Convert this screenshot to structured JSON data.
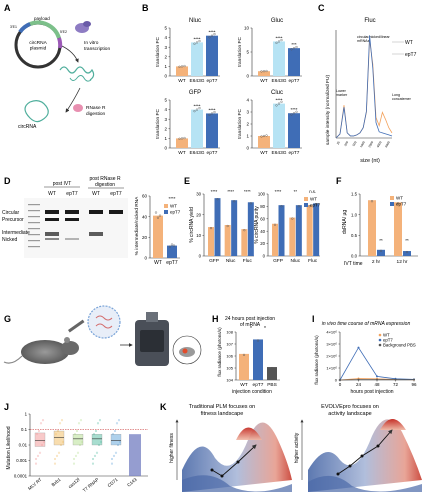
{
  "colors": {
    "wt": "#f4b27a",
    "e643g": "#b6e3f4",
    "ept7": "#3f6db6",
    "gray": "#555555",
    "highlight": "#c52525"
  },
  "panels": {
    "A": {
      "letter": "A",
      "plasmid_label": "circRNA\nplasmid",
      "arc_labels": [
        "payload",
        "3'E1",
        "5'E2"
      ],
      "step1": "In vitro\ntranscription",
      "step2": "RNase R\ndigestion",
      "product": "circRNA"
    },
    "B": {
      "letter": "B",
      "ylabel": "translation FC"
    },
    "C": {
      "letter": "C",
      "title": "Fluc",
      "ylabel": "sample intensity (normalized FU)",
      "xlabel": "size (nt)",
      "legend": [
        "WT",
        "epT7"
      ],
      "annotations": [
        "circular/nicked/linear\nmRNAs",
        "Lower\nmarker",
        "Long\nconcatemer"
      ]
    },
    "D": {
      "letter": "D",
      "lane_groups": [
        "post IVT",
        "post RNase R\ndigestion"
      ],
      "lanes": [
        "WT",
        "epT7",
        "WT",
        "epT7"
      ],
      "band_labels": [
        "Circular",
        "Precursor",
        "Intermediate",
        "Nicked"
      ],
      "chart_ylabel": "% intermediate/nicked RNA",
      "sig": "****"
    },
    "E": {
      "letter": "E",
      "ylabel_left": "% circRNA yield",
      "ylabel_right": "% circRNA purity",
      "legend": [
        "WT",
        "epT7"
      ]
    },
    "F": {
      "letter": "F",
      "ylabel": "dsRNA/ µg",
      "xlabel": "IVT time",
      "legend": [
        "WT",
        "epT7"
      ]
    },
    "G": {
      "letter": "G"
    },
    "H": {
      "letter": "H",
      "title": "24 hours post injection\nof mRNA",
      "ylabel": "flux radiance (photons/s)",
      "xlabel": "injection condition"
    },
    "I": {
      "letter": "I",
      "title": "in vivo time course of mRNA expression",
      "ylabel": "flux radiance (photons/s)",
      "xlabel": "hours post injection",
      "legend": [
        "WT",
        "epT7",
        "Background PBS"
      ]
    },
    "J": {
      "letter": "J",
      "ylabel": "Mutation Likelihood"
    },
    "K": {
      "letter": "K",
      "left_title": "Traditional PLM focuses on\nfitness landscape",
      "left_axis": "higher fitness",
      "right_title": "EVOLVEpro focuses on\nactivity landscape",
      "right_axis": "higher activity"
    }
  },
  "chart_data": [
    {
      "panel": "B",
      "name": "Nluc",
      "type": "bar",
      "title": "Nluc",
      "categories": [
        "WT",
        "E643G",
        "epT7"
      ],
      "values": [
        1,
        3.5,
        4.2
      ],
      "ylim": [
        0,
        5
      ],
      "yticks": [
        0,
        1,
        2,
        3,
        4,
        5
      ],
      "sig": [
        "****",
        "****"
      ]
    },
    {
      "panel": "B",
      "name": "Gluc",
      "type": "bar",
      "title": "Gluc",
      "categories": [
        "WT",
        "E643G",
        "epT7"
      ],
      "values": [
        1,
        7.2,
        5.8
      ],
      "ylim": [
        0,
        10
      ],
      "yticks": [
        0,
        5,
        10
      ],
      "sig": [
        "****",
        "***"
      ]
    },
    {
      "panel": "B",
      "name": "GFP",
      "type": "bar",
      "title": "GFP",
      "categories": [
        "WT",
        "E643G",
        "epT7"
      ],
      "values": [
        1,
        4.0,
        3.6
      ],
      "ylim": [
        0,
        5
      ],
      "yticks": [
        0,
        1,
        2,
        3,
        4,
        5
      ],
      "sig": [
        "****",
        "****"
      ]
    },
    {
      "panel": "B",
      "name": "Cluc",
      "type": "bar",
      "title": "Cluc",
      "categories": [
        "WT",
        "E643G",
        "epT7"
      ],
      "values": [
        1,
        3.7,
        2.9
      ],
      "ylim": [
        0,
        4
      ],
      "yticks": [
        0,
        1,
        2,
        3,
        4
      ],
      "sig": [
        "****",
        "****"
      ]
    },
    {
      "panel": "C",
      "type": "line",
      "xlabel": "size (nt)",
      "ylabel": "sample intensity (normalized FU)",
      "x_ticks": [
        "25",
        "200",
        "500",
        "1000",
        "2000",
        "4000",
        "6000"
      ],
      "series": [
        {
          "name": "WT",
          "x": [
            0,
            0.5,
            1,
            1.4,
            1.8,
            2.2,
            2.6,
            3.0,
            3.4,
            3.8,
            4.2,
            4.6,
            5.0,
            5.4,
            5.8,
            6.2,
            6.6,
            7.0
          ],
          "y": [
            0,
            0.04,
            0.32,
            0.05,
            0.02,
            0.02,
            0.03,
            0.05,
            0.1,
            0.25,
            0.96,
            0.72,
            0.2,
            0.12,
            0.25,
            0.18,
            0.1,
            0.05
          ]
        },
        {
          "name": "epT7",
          "x": [
            0,
            0.5,
            1,
            1.4,
            1.8,
            2.2,
            2.6,
            3.0,
            3.4,
            3.8,
            4.2,
            4.6,
            5.0,
            5.4,
            5.8,
            6.2,
            6.6,
            7.0
          ],
          "y": [
            0,
            0.04,
            0.3,
            0.05,
            0.02,
            0.02,
            0.03,
            0.05,
            0.1,
            0.26,
            1.0,
            0.68,
            0.15,
            0.06,
            0.05,
            0.04,
            0.03,
            0.02
          ]
        }
      ]
    },
    {
      "panel": "D",
      "type": "bar",
      "categories": [
        "WT",
        "epT7"
      ],
      "values": [
        41,
        12
      ],
      "ylim": [
        0,
        60
      ],
      "yticks": [
        0,
        20,
        40,
        60
      ],
      "points": [
        [
          44,
          39,
          41
        ],
        [
          11,
          13,
          12
        ]
      ]
    },
    {
      "panel": "E",
      "name": "yield",
      "type": "bar",
      "categories": [
        "GFP",
        "Nluc",
        "Fluc"
      ],
      "ylim": [
        0,
        30
      ],
      "yticks": [
        0,
        10,
        20,
        30
      ],
      "series": [
        {
          "name": "WT",
          "values": [
            14,
            15,
            13
          ]
        },
        {
          "name": "epT7",
          "values": [
            28,
            27,
            26
          ]
        }
      ],
      "sig": [
        "****",
        "****",
        "****"
      ]
    },
    {
      "panel": "E",
      "name": "purity",
      "type": "bar",
      "categories": [
        "GFP",
        "Nluc",
        "Fluc"
      ],
      "ylim": [
        0,
        100
      ],
      "yticks": [
        0,
        20,
        40,
        60,
        80,
        100
      ],
      "series": [
        {
          "name": "WT",
          "values": [
            52,
            62,
            82
          ]
        },
        {
          "name": "epT7",
          "values": [
            82,
            82,
            85
          ]
        }
      ],
      "sig": [
        "****",
        "**",
        "n.s."
      ]
    },
    {
      "panel": "F",
      "type": "bar",
      "categories": [
        "2 hr",
        "12 hr"
      ],
      "ylim": [
        0,
        1.5
      ],
      "yticks": [
        0.0,
        0.5,
        1.0,
        1.5
      ],
      "series": [
        {
          "name": "WT",
          "values": [
            1.35,
            1.3
          ]
        },
        {
          "name": "epT7",
          "values": [
            0.15,
            0.12
          ]
        }
      ],
      "sig": [
        "**",
        "**"
      ]
    },
    {
      "panel": "H",
      "type": "bar",
      "categories": [
        "WT",
        "epT7",
        "PBS"
      ],
      "values": [
        1500000.0,
        24000000.0,
        120000.0
      ],
      "ylim": [
        10000.0,
        100000000.0
      ],
      "log": true,
      "ytick_labels": [
        "10^4",
        "10^5",
        "10^6",
        "10^7",
        "10^8"
      ],
      "sig": [
        "*",
        "*"
      ]
    },
    {
      "panel": "I",
      "type": "line",
      "x_ticks": [
        "0",
        "24",
        "48",
        "72",
        "96"
      ],
      "yticks": [
        0,
        1000000.0,
        2000000.0,
        3000000.0,
        4000000.0
      ],
      "ytick_labels": [
        "0",
        "1×10⁶",
        "2×10⁶",
        "3×10⁶",
        "4×10⁶"
      ],
      "series": [
        {
          "name": "WT",
          "x": [
            0,
            24,
            48,
            72,
            96
          ],
          "y": [
            0,
            120000.0,
            100000.0,
            40000.0,
            20000.0
          ]
        },
        {
          "name": "epT7",
          "x": [
            0,
            24,
            48,
            72,
            96
          ],
          "y": [
            0,
            2700000.0,
            300000.0,
            100000.0,
            50000.0
          ]
        },
        {
          "name": "Background PBS",
          "x": [
            0,
            24,
            48,
            72,
            96
          ],
          "y": [
            0,
            30000.0,
            30000.0,
            30000.0,
            30000.0
          ]
        }
      ]
    },
    {
      "panel": "J",
      "type": "box",
      "categories": [
        "MLV RT",
        "Bxb1",
        "cas12f",
        "T7 RNAP",
        "CD71",
        "C143"
      ],
      "ytick_labels": [
        "0.0001",
        "0.001",
        "0.01",
        "0.1",
        "1"
      ],
      "medians": [
        0.02,
        0.03,
        0.025,
        0.025,
        0.02,
        0.03
      ],
      "q1": [
        0.008,
        0.01,
        0.01,
        0.01,
        0.01,
        0.012
      ],
      "q3": [
        0.06,
        0.08,
        0.05,
        0.05,
        0.05,
        0.05
      ],
      "colors": [
        "#f4a6a6",
        "#f4c77a",
        "#bfe3a0",
        "#6dc7b0",
        "#7ab3e0",
        "#7b85c4"
      ]
    }
  ]
}
